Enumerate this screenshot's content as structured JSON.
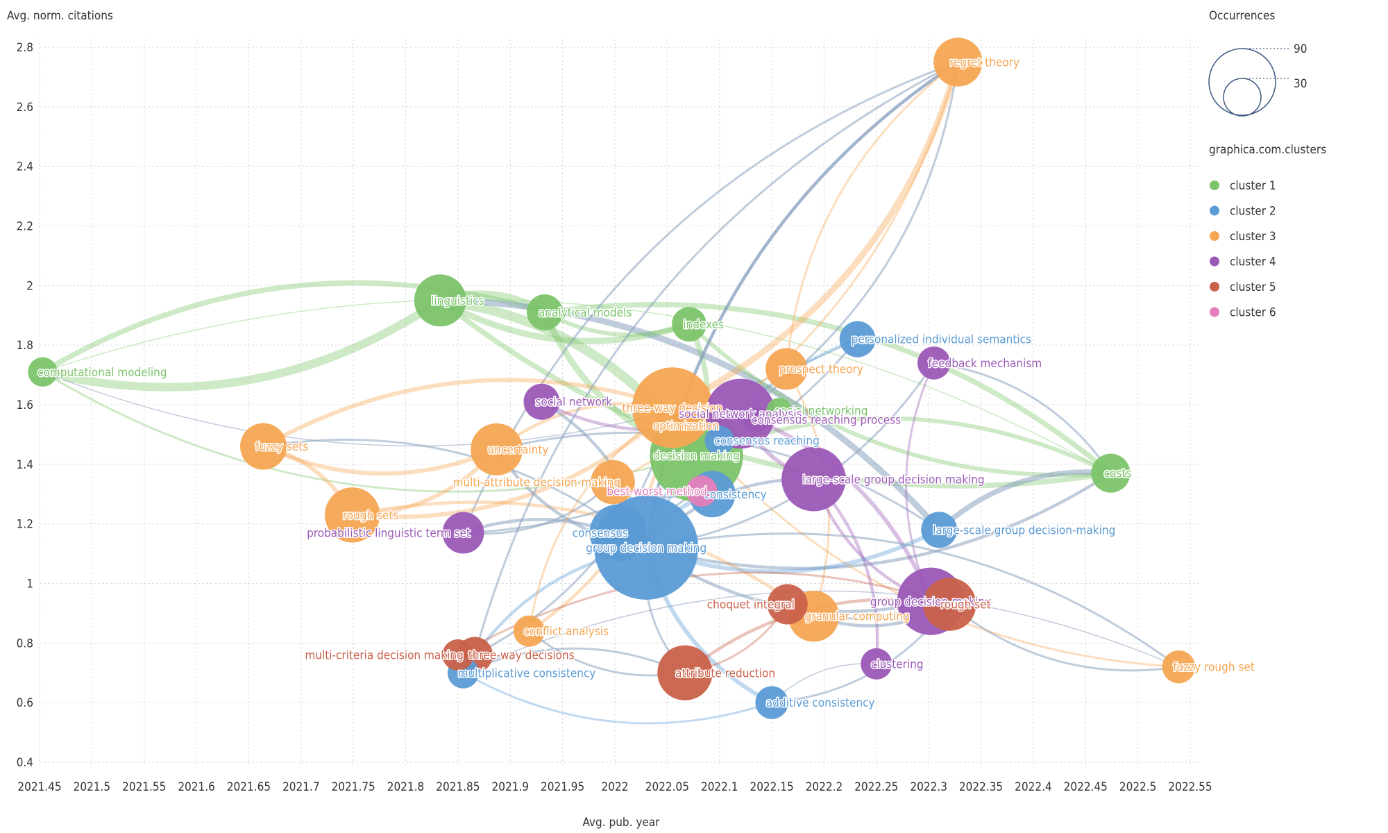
{
  "chart_data": {
    "type": "scatter",
    "xlabel": "Avg. pub. year",
    "ylabel": "Avg. norm. citations",
    "xlim": [
      2021.45,
      2022.55
    ],
    "ylim": [
      0.4,
      2.85
    ],
    "x_ticks": [
      "2021.45",
      "2021.5",
      "2021.55",
      "2021.6",
      "2021.65",
      "2021.7",
      "2021.75",
      "2021.8",
      "2021.85",
      "2021.9",
      "2021.95",
      "2022",
      "2022.05",
      "2022.1",
      "2022.15",
      "2022.2",
      "2022.25",
      "2022.3",
      "2022.35",
      "2022.4",
      "2022.45",
      "2022.5",
      "2022.55"
    ],
    "y_ticks": [
      "0.4",
      "0.6",
      "0.8",
      "1",
      "1.2",
      "1.4",
      "1.6",
      "1.8",
      "2",
      "2.2",
      "2.4",
      "2.6",
      "2.8"
    ],
    "grid": true,
    "legend_title": "graphica.com.clusters",
    "size_legend": {
      "title": "Occurrences",
      "values": [
        "90",
        "30"
      ]
    },
    "clusters": [
      {
        "name": "cluster 1",
        "color": "#7cc46a"
      },
      {
        "name": "cluster 2",
        "color": "#5b9bd5"
      },
      {
        "name": "cluster 3",
        "color": "#f6a552"
      },
      {
        "name": "cluster 4",
        "color": "#9b59b6"
      },
      {
        "name": "cluster 5",
        "color": "#c9614a"
      },
      {
        "name": "cluster 6",
        "color": "#e37fb9"
      }
    ],
    "nodes": [
      {
        "label": "computational modeling",
        "x": 2021.453,
        "y": 1.71,
        "occurrences": 8,
        "cluster": 1,
        "label_side": "right"
      },
      {
        "label": "linguistics",
        "x": 2021.833,
        "y": 1.95,
        "occurrences": 25,
        "cluster": 1,
        "label_side": "right"
      },
      {
        "label": "analytical models",
        "x": 2021.933,
        "y": 1.91,
        "occurrences": 12,
        "cluster": 1,
        "label_side": "right"
      },
      {
        "label": "indexes",
        "x": 2022.071,
        "y": 1.87,
        "occurrences": 11,
        "cluster": 1,
        "label_side": "right"
      },
      {
        "label": "social networking",
        "x": 2022.157,
        "y": 1.58,
        "occurrences": 6,
        "cluster": 1,
        "label_side": "right"
      },
      {
        "label": "decision making",
        "x": 2022.078,
        "y": 1.43,
        "occurrences": 80,
        "cluster": 1,
        "label_side": "center"
      },
      {
        "label": "costs",
        "x": 2022.474,
        "y": 1.37,
        "occurrences": 14,
        "cluster": 1,
        "label_side": "right"
      },
      {
        "label": "personalized individual semantics",
        "x": 2022.232,
        "y": 1.82,
        "occurrences": 12,
        "cluster": 2,
        "label_side": "right"
      },
      {
        "label": "consensus reaching",
        "x": 2022.1,
        "y": 1.48,
        "occurrences": 8,
        "cluster": 2,
        "label_side": "right"
      },
      {
        "label": "consistency",
        "x": 2022.093,
        "y": 1.3,
        "occurrences": 20,
        "cluster": 2,
        "label_side": "right"
      },
      {
        "label": "large-scale group decision-making",
        "x": 2022.31,
        "y": 1.18,
        "occurrences": 12,
        "cluster": 2,
        "label_side": "right"
      },
      {
        "label": "consensus",
        "x": 2022.003,
        "y": 1.17,
        "occurrences": 30,
        "cluster": 2,
        "label_side": "left"
      },
      {
        "label": "group decision making",
        "x": 2022.03,
        "y": 1.12,
        "occurrences": 100,
        "cluster": 2,
        "label_side": "center"
      },
      {
        "label": "multiplicative consistency",
        "x": 2021.855,
        "y": 0.7,
        "occurrences": 9,
        "cluster": 2,
        "label_side": "right"
      },
      {
        "label": "additive consistency",
        "x": 2022.15,
        "y": 0.6,
        "occurrences": 10,
        "cluster": 2,
        "label_side": "right"
      },
      {
        "label": "regret theory",
        "x": 2022.328,
        "y": 2.75,
        "occurrences": 22,
        "cluster": 3,
        "label_side": "right"
      },
      {
        "label": "prospect theory",
        "x": 2022.164,
        "y": 1.72,
        "occurrences": 16,
        "cluster": 3,
        "label_side": "right"
      },
      {
        "label": "three-way decision",
        "x": 2022.055,
        "y": 1.59,
        "occurrences": 60,
        "cluster": 3,
        "label_side": "center"
      },
      {
        "label": "optimization",
        "x": 2022.068,
        "y": 1.53,
        "occurrences": 4,
        "cluster": 3,
        "label_side": "center"
      },
      {
        "label": "fuzzy sets",
        "x": 2021.664,
        "y": 1.46,
        "occurrences": 20,
        "cluster": 3,
        "label_side": "right"
      },
      {
        "label": "uncertainty",
        "x": 2021.887,
        "y": 1.45,
        "occurrences": 25,
        "cluster": 3,
        "label_side": "right"
      },
      {
        "label": "multi-attribute decision-making",
        "x": 2021.998,
        "y": 1.34,
        "occurrences": 18,
        "cluster": 3,
        "label_side": "left"
      },
      {
        "label": "rough sets",
        "x": 2021.749,
        "y": 1.23,
        "occurrences": 28,
        "cluster": 3,
        "label_side": "right"
      },
      {
        "label": "conflict analysis",
        "x": 2021.918,
        "y": 0.84,
        "occurrences": 9,
        "cluster": 3,
        "label_side": "right"
      },
      {
        "label": "granular computing",
        "x": 2022.19,
        "y": 0.89,
        "occurrences": 24,
        "cluster": 3,
        "label_side": "right"
      },
      {
        "label": "fuzzy rough set",
        "x": 2022.539,
        "y": 0.72,
        "occurrences": 10,
        "cluster": 3,
        "label_side": "right"
      },
      {
        "label": "feedback mechanism",
        "x": 2022.305,
        "y": 1.74,
        "occurrences": 10,
        "cluster": 4,
        "label_side": "right"
      },
      {
        "label": "social network",
        "x": 2021.93,
        "y": 1.61,
        "occurrences": 12,
        "cluster": 4,
        "label_side": "right"
      },
      {
        "label": "social network analysis",
        "x": 2022.12,
        "y": 1.57,
        "occurrences": 45,
        "cluster": 4,
        "label_side": "center"
      },
      {
        "label": "consensus reaching process",
        "x": 2022.135,
        "y": 1.55,
        "occurrences": 6,
        "cluster": 4,
        "label_side": "right"
      },
      {
        "label": "large-scale group decision making",
        "x": 2022.19,
        "y": 1.35,
        "occurrences": 38,
        "cluster": 4,
        "label_side": "right"
      },
      {
        "label": "probabilistic linguistic term set",
        "x": 2021.855,
        "y": 1.17,
        "occurrences": 16,
        "cluster": 4,
        "label_side": "left"
      },
      {
        "label": "group decision-making",
        "x": 2022.302,
        "y": 0.94,
        "occurrences": 42,
        "cluster": 4,
        "label_side": "center"
      },
      {
        "label": "clustering",
        "x": 2022.25,
        "y": 0.73,
        "occurrences": 9,
        "cluster": 4,
        "label_side": "right"
      },
      {
        "label": "choquet integral",
        "x": 2022.165,
        "y": 0.93,
        "occurrences": 15,
        "cluster": 5,
        "label_side": "left"
      },
      {
        "label": "rough set",
        "x": 2022.32,
        "y": 0.93,
        "occurrences": 26,
        "cluster": 5,
        "label_side": "right"
      },
      {
        "label": "multi-criteria decision making",
        "x": 2021.85,
        "y": 0.76,
        "occurrences": 9,
        "cluster": 5,
        "label_side": "left"
      },
      {
        "label": "three-way decisions",
        "x": 2021.866,
        "y": 0.76,
        "occurrences": 12,
        "cluster": 5,
        "label_side": "right"
      },
      {
        "label": "attribute reduction",
        "x": 2022.067,
        "y": 0.7,
        "occurrences": 28,
        "cluster": 5,
        "label_side": "right"
      },
      {
        "label": "best-worst method",
        "x": 2022.083,
        "y": 1.31,
        "occurrences": 9,
        "cluster": 6,
        "label_side": "left"
      }
    ],
    "links": [
      {
        "source": "computational modeling",
        "target": "linguistics",
        "weight": 8
      },
      {
        "source": "computational modeling",
        "target": "analytical models",
        "weight": 5
      },
      {
        "source": "computational modeling",
        "target": "decision making",
        "weight": 2
      },
      {
        "source": "computational modeling",
        "target": "costs",
        "weight": 1
      },
      {
        "source": "computational modeling",
        "target": "personalized individual semantics",
        "weight": 1
      },
      {
        "source": "linguistics",
        "target": "analytical models",
        "weight": 7
      },
      {
        "source": "linguistics",
        "target": "indexes",
        "weight": 6
      },
      {
        "source": "linguistics",
        "target": "decision making",
        "weight": 9
      },
      {
        "source": "linguistics",
        "target": "costs",
        "weight": 5
      },
      {
        "source": "linguistics",
        "target": "large-scale group decision-making",
        "weight": 6
      },
      {
        "source": "analytical models",
        "target": "decision making",
        "weight": 6
      },
      {
        "source": "analytical models",
        "target": "costs",
        "weight": 5
      },
      {
        "source": "analytical models",
        "target": "indexes",
        "weight": 4
      },
      {
        "source": "indexes",
        "target": "decision making",
        "weight": 5
      },
      {
        "source": "indexes",
        "target": "costs",
        "weight": 4
      },
      {
        "source": "decision making",
        "target": "costs",
        "weight": 4
      },
      {
        "source": "decision making",
        "target": "social networking",
        "weight": 3
      },
      {
        "source": "large-scale group decision-making",
        "target": "costs",
        "weight": 5
      },
      {
        "source": "group decision making",
        "target": "costs",
        "weight": 3
      },
      {
        "source": "regret theory",
        "target": "three-way decision",
        "weight": 6
      },
      {
        "source": "regret theory",
        "target": "group decision making",
        "weight": 3
      },
      {
        "source": "regret theory",
        "target": "multi-attribute decision-making",
        "weight": 2
      },
      {
        "source": "regret theory",
        "target": "prospect theory",
        "weight": 2
      },
      {
        "source": "regret theory",
        "target": "social network analysis",
        "weight": 2
      },
      {
        "source": "regret theory",
        "target": "probabilistic linguistic term set",
        "weight": 2
      },
      {
        "source": "prospect theory",
        "target": "granular computing",
        "weight": 2
      },
      {
        "source": "three-way decision",
        "target": "fuzzy sets",
        "weight": 4
      },
      {
        "source": "three-way decision",
        "target": "rough sets",
        "weight": 4
      },
      {
        "source": "three-way decision",
        "target": "uncertainty",
        "weight": 3
      },
      {
        "source": "three-way decision",
        "target": "conflict analysis",
        "weight": 3
      },
      {
        "source": "three-way decision",
        "target": "fuzzy rough set",
        "weight": 2
      },
      {
        "source": "fuzzy sets",
        "target": "rough sets",
        "weight": 4
      },
      {
        "source": "fuzzy sets",
        "target": "uncertainty",
        "weight": 4
      },
      {
        "source": "fuzzy sets",
        "target": "group decision making",
        "weight": 2
      },
      {
        "source": "rough sets",
        "target": "uncertainty",
        "weight": 4
      },
      {
        "source": "rough sets",
        "target": "granular computing",
        "weight": 3
      },
      {
        "source": "uncertainty",
        "target": "group decision making",
        "weight": 3
      },
      {
        "source": "uncertainty",
        "target": "large-scale group decision-making",
        "weight": 2
      },
      {
        "source": "social network",
        "target": "social network analysis",
        "weight": 3
      },
      {
        "source": "social network",
        "target": "group decision making",
        "weight": 3
      },
      {
        "source": "social network analysis",
        "target": "large-scale group decision making",
        "weight": 4
      },
      {
        "source": "social network analysis",
        "target": "group decision-making",
        "weight": 4
      },
      {
        "source": "large-scale group decision making",
        "target": "group decision making",
        "weight": 3
      },
      {
        "source": "large-scale group decision making",
        "target": "clustering",
        "weight": 3
      },
      {
        "source": "large-scale group decision making",
        "target": "group decision-making",
        "weight": 3
      },
      {
        "source": "feedback mechanism",
        "target": "group decision making",
        "weight": 2
      },
      {
        "source": "feedback mechanism",
        "target": "group decision-making",
        "weight": 2
      },
      {
        "source": "probabilistic linguistic term set",
        "target": "group decision making",
        "weight": 3
      },
      {
        "source": "probabilistic linguistic term set",
        "target": "multi-attribute decision-making",
        "weight": 2
      },
      {
        "source": "consensus",
        "target": "group decision making",
        "weight": 5
      },
      {
        "source": "consistency",
        "target": "group decision making",
        "weight": 4
      },
      {
        "source": "multiplicative consistency",
        "target": "group decision making",
        "weight": 3
      },
      {
        "source": "multiplicative consistency",
        "target": "additive consistency",
        "weight": 2
      },
      {
        "source": "additive consistency",
        "target": "group decision making",
        "weight": 4
      },
      {
        "source": "personalized individual semantics",
        "target": "group decision making",
        "weight": 3
      },
      {
        "source": "personalized individual semantics",
        "target": "probabilistic linguistic term set",
        "weight": 2
      },
      {
        "source": "group decision making",
        "target": "large-scale group decision-making",
        "weight": 4
      },
      {
        "source": "group decision making",
        "target": "regret theory",
        "weight": 3
      },
      {
        "source": "group decision making",
        "target": "group decision-making",
        "weight": 3
      },
      {
        "source": "group decision making",
        "target": "fuzzy rough set",
        "weight": 2
      },
      {
        "source": "consensus reaching",
        "target": "group decision making",
        "weight": 3
      },
      {
        "source": "attribute reduction",
        "target": "rough set",
        "weight": 3
      },
      {
        "source": "attribute reduction",
        "target": "multiplicative consistency",
        "weight": 2
      },
      {
        "source": "attribute reduction",
        "target": "group decision making",
        "weight": 2
      },
      {
        "source": "attribute reduction",
        "target": "choquet integral",
        "weight": 2
      },
      {
        "source": "multi-criteria decision making",
        "target": "rough set",
        "weight": 2
      },
      {
        "source": "three-way decisions",
        "target": "three-way decision",
        "weight": 2
      },
      {
        "source": "three-way decisions",
        "target": "regret theory",
        "weight": 2
      },
      {
        "source": "choquet integral",
        "target": "group decision-making",
        "weight": 2
      },
      {
        "source": "rough set",
        "target": "granular computing",
        "weight": 3
      },
      {
        "source": "rough set",
        "target": "fuzzy rough set",
        "weight": 2
      },
      {
        "source": "rough set",
        "target": "additive consistency",
        "weight": 2
      },
      {
        "source": "best-worst method",
        "target": "group decision making",
        "weight": 2
      },
      {
        "source": "best-worst method",
        "target": "multi-attribute decision-making",
        "weight": 2
      },
      {
        "source": "conflict analysis",
        "target": "attribute reduction",
        "weight": 2
      },
      {
        "source": "conflict analysis",
        "target": "three-way decision",
        "weight": 2
      },
      {
        "source": "costs",
        "target": "feedback mechanism",
        "weight": 2
      },
      {
        "source": "multiplicative consistency",
        "target": "fuzzy rough set",
        "weight": 1
      },
      {
        "source": "clustering",
        "target": "additive consistency",
        "weight": 1
      }
    ]
  }
}
